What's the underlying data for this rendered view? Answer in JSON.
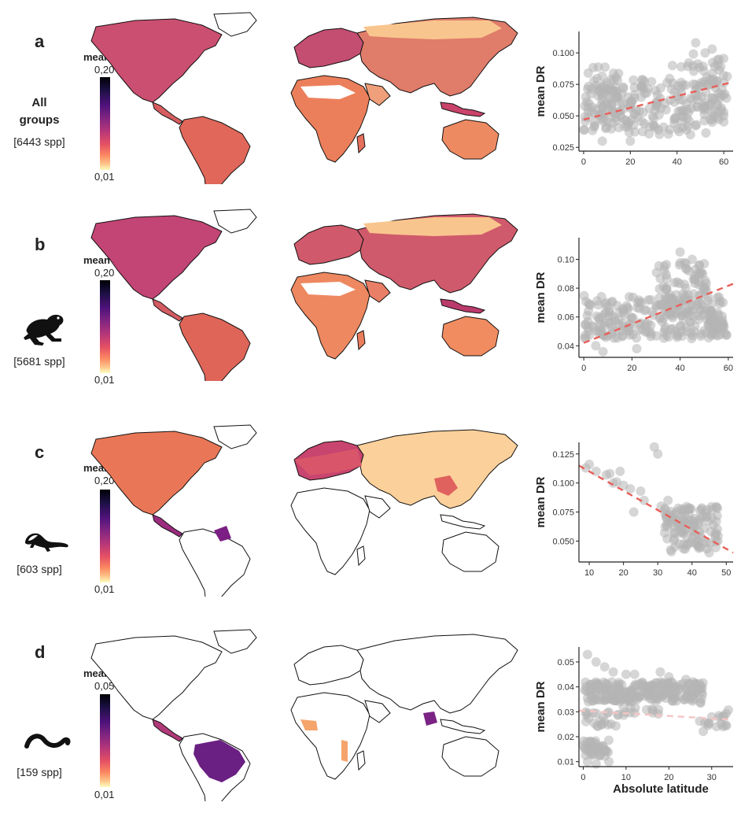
{
  "xaxis_title": "Absolute latitude",
  "panels": [
    {
      "letter": "a",
      "legend_title": "mean DR",
      "legend_max": "0,20",
      "legend_min": "0,01",
      "group": [
        "All",
        "groups"
      ],
      "count": "[6443 spp]",
      "icon": "all-groups"
    },
    {
      "letter": "b",
      "legend_title": "mean DR",
      "legend_max": "0,20",
      "legend_min": "0,01",
      "group": [],
      "count": "[5681 spp]",
      "icon": "frog-icon"
    },
    {
      "letter": "c",
      "legend_title": "mean DR",
      "legend_max": "0,20",
      "legend_min": "0,01",
      "group": [],
      "count": "[603 spp]",
      "icon": "salamander-icon"
    },
    {
      "letter": "d",
      "legend_title": "mean DR",
      "legend_max": "0,05",
      "legend_min": "0,01",
      "group": [],
      "count": "[159 spp]",
      "icon": "caecilian-icon"
    }
  ],
  "chart_data": [
    {
      "type": "scatter",
      "panel": "a",
      "xlabel": "",
      "ylabel": "mean DR",
      "xlim": [
        -2,
        64
      ],
      "ylim": [
        0.022,
        0.117
      ],
      "xticks": [
        0,
        20,
        40,
        60
      ],
      "xtick_labels": [
        "0",
        "20",
        "40",
        "60"
      ],
      "yticks": [
        0.025,
        0.05,
        0.075,
        0.1
      ],
      "ytick_labels": [
        "0.025",
        "0.050",
        "0.075",
        "0.100"
      ],
      "trend": {
        "x": [
          0,
          64
        ],
        "y": [
          0.047,
          0.077
        ]
      },
      "clusters": [
        {
          "x": [
            0,
            60
          ],
          "y": [
            0.035,
            0.08
          ],
          "n": 210
        },
        {
          "x": [
            0,
            15
          ],
          "y": [
            0.04,
            0.09
          ],
          "n": 40
        },
        {
          "x": [
            40,
            62
          ],
          "y": [
            0.045,
            0.1
          ],
          "n": 50
        }
      ],
      "points": [
        {
          "x": 48,
          "y": 0.108
        },
        {
          "x": 52,
          "y": 0.1
        },
        {
          "x": 55,
          "y": 0.103
        },
        {
          "x": 58,
          "y": 0.095
        },
        {
          "x": 38,
          "y": 0.09
        },
        {
          "x": 45,
          "y": 0.092
        },
        {
          "x": 20,
          "y": 0.03
        },
        {
          "x": 8,
          "y": 0.03
        },
        {
          "x": 60,
          "y": 0.05
        },
        {
          "x": 55,
          "y": 0.045
        }
      ]
    },
    {
      "type": "scatter",
      "panel": "b",
      "xlabel": "",
      "ylabel": "mean DR",
      "xlim": [
        -2,
        62
      ],
      "ylim": [
        0.032,
        0.115
      ],
      "xticks": [
        0,
        20,
        40,
        60
      ],
      "xtick_labels": [
        "0",
        "20",
        "40",
        "60"
      ],
      "yticks": [
        0.04,
        0.06,
        0.08,
        0.1
      ],
      "ytick_labels": [
        "0.04",
        "0.06",
        "0.08",
        "0.10"
      ],
      "trend": {
        "x": [
          0,
          62
        ],
        "y": [
          0.042,
          0.083
        ]
      },
      "clusters": [
        {
          "x": [
            0,
            58
          ],
          "y": [
            0.045,
            0.075
          ],
          "n": 220
        },
        {
          "x": [
            30,
            52
          ],
          "y": [
            0.06,
            0.098
          ],
          "n": 80
        },
        {
          "x": [
            52,
            60
          ],
          "y": [
            0.045,
            0.065
          ],
          "n": 30
        }
      ],
      "points": [
        {
          "x": 40,
          "y": 0.105
        },
        {
          "x": 45,
          "y": 0.1
        },
        {
          "x": 50,
          "y": 0.097
        },
        {
          "x": 8,
          "y": 0.036
        },
        {
          "x": 22,
          "y": 0.038
        },
        {
          "x": 5,
          "y": 0.04
        }
      ]
    },
    {
      "type": "scatter",
      "panel": "c",
      "xlabel": "",
      "ylabel": "mean DR",
      "xlim": [
        7,
        52
      ],
      "ylim": [
        0.032,
        0.135
      ],
      "xticks": [
        10,
        20,
        30,
        40,
        50
      ],
      "xtick_labels": [
        "10",
        "20",
        "30",
        "40",
        "50"
      ],
      "yticks": [
        0.05,
        0.075,
        0.1,
        0.125
      ],
      "ytick_labels": [
        "0.050",
        "0.075",
        "0.100",
        "0.125"
      ],
      "trend": {
        "x": [
          7,
          52
        ],
        "y": [
          0.115,
          0.04
        ]
      },
      "clusters": [
        {
          "x": [
            32,
            48
          ],
          "y": [
            0.04,
            0.08
          ],
          "n": 120
        }
      ],
      "points": [
        {
          "x": 9,
          "y": 0.113
        },
        {
          "x": 10,
          "y": 0.116
        },
        {
          "x": 12,
          "y": 0.11
        },
        {
          "x": 15,
          "y": 0.107
        },
        {
          "x": 16,
          "y": 0.108
        },
        {
          "x": 17,
          "y": 0.1
        },
        {
          "x": 18,
          "y": 0.101
        },
        {
          "x": 19,
          "y": 0.11
        },
        {
          "x": 20,
          "y": 0.098
        },
        {
          "x": 22,
          "y": 0.095
        },
        {
          "x": 25,
          "y": 0.093
        },
        {
          "x": 26,
          "y": 0.085
        },
        {
          "x": 29,
          "y": 0.131
        },
        {
          "x": 30,
          "y": 0.125
        },
        {
          "x": 31,
          "y": 0.08
        },
        {
          "x": 33,
          "y": 0.085
        },
        {
          "x": 23,
          "y": 0.075
        },
        {
          "x": 35,
          "y": 0.045
        },
        {
          "x": 45,
          "y": 0.04
        }
      ]
    },
    {
      "type": "scatter",
      "panel": "d",
      "xlabel": "Absolute latitude",
      "ylabel": "mean DR",
      "xlim": [
        -1,
        35
      ],
      "ylim": [
        0.008,
        0.056
      ],
      "xticks": [
        0,
        10,
        20,
        30
      ],
      "xtick_labels": [
        "0",
        "10",
        "20",
        "30"
      ],
      "yticks": [
        0.01,
        0.02,
        0.03,
        0.04,
        0.05
      ],
      "ytick_labels": [
        "0.01",
        "0.02",
        "0.03",
        "0.04",
        "0.05"
      ],
      "trend": {
        "x": [
          -1,
          35
        ],
        "y": [
          0.0305,
          0.0268
        ]
      },
      "clusters": [
        {
          "x": [
            0,
            28
          ],
          "y": [
            0.034,
            0.042
          ],
          "n": 230
        },
        {
          "x": [
            0,
            6
          ],
          "y": [
            0.012,
            0.019
          ],
          "n": 40
        },
        {
          "x": [
            0,
            8
          ],
          "y": [
            0.024,
            0.03
          ],
          "n": 20
        },
        {
          "x": [
            8,
            18
          ],
          "y": [
            0.028,
            0.032
          ],
          "n": 15
        },
        {
          "x": [
            27,
            34
          ],
          "y": [
            0.022,
            0.034
          ],
          "n": 20
        }
      ],
      "points": [
        {
          "x": 1,
          "y": 0.053
        },
        {
          "x": 3,
          "y": 0.05
        },
        {
          "x": 5,
          "y": 0.048
        },
        {
          "x": 7,
          "y": 0.046
        },
        {
          "x": 10,
          "y": 0.045
        },
        {
          "x": 12,
          "y": 0.045
        },
        {
          "x": 18,
          "y": 0.046
        },
        {
          "x": 20,
          "y": 0.044
        },
        {
          "x": 24,
          "y": 0.043
        },
        {
          "x": 1,
          "y": 0.01
        },
        {
          "x": 3,
          "y": 0.009
        },
        {
          "x": 6,
          "y": 0.01
        }
      ]
    }
  ]
}
